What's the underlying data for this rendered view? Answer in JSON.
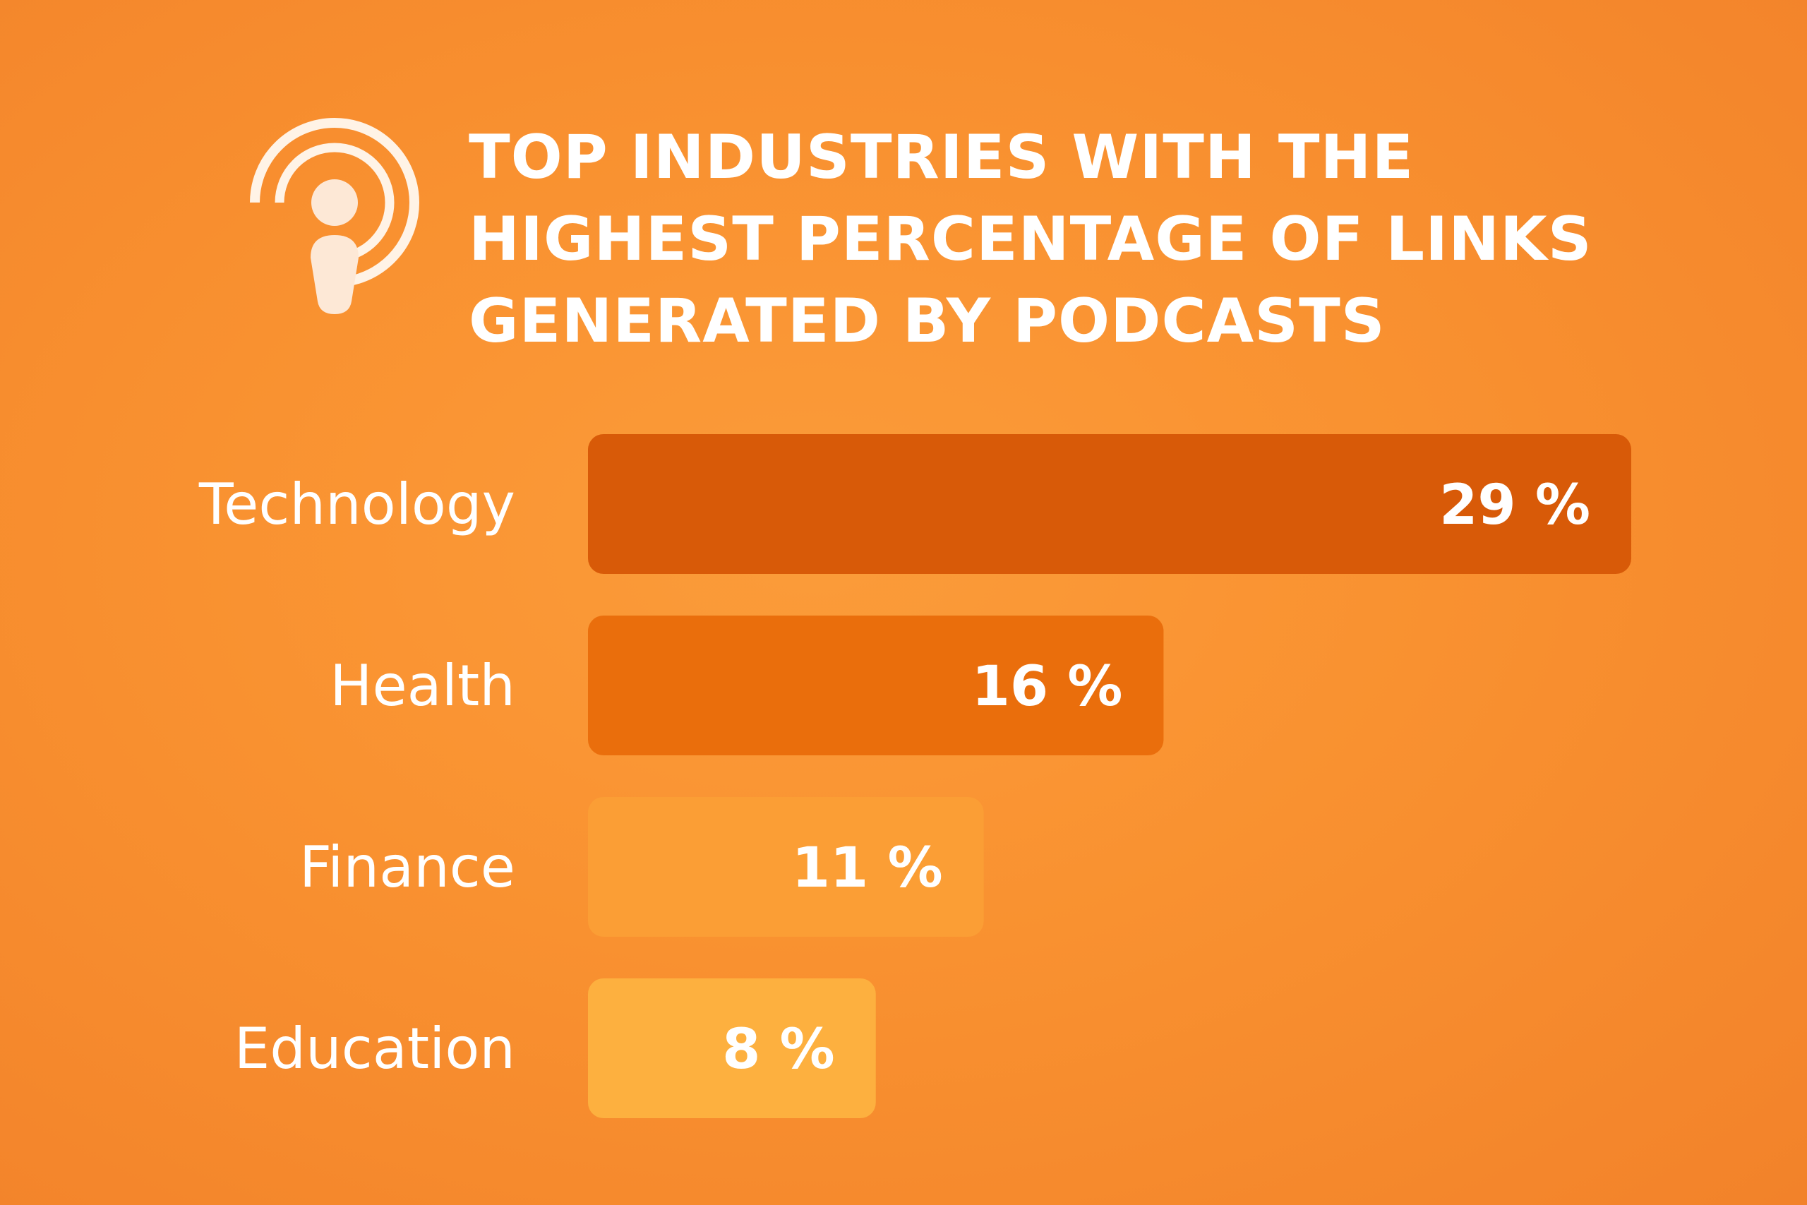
{
  "header": {
    "icon": "podcast-icon",
    "title": "TOP INDUSTRIES WITH THE\nHIGHEST PERCENTAGE OF LINKS\nGENERATED BY PODCASTS"
  },
  "chart_data": {
    "type": "bar",
    "orientation": "horizontal",
    "title": "TOP INDUSTRIES WITH THE HIGHEST PERCENTAGE OF LINKS GENERATED BY PODCASTS",
    "xlabel": "",
    "ylabel": "",
    "categories": [
      "Technology",
      "Health",
      "Finance",
      "Education"
    ],
    "values": [
      29,
      16,
      11,
      8
    ],
    "value_labels": [
      "29 %",
      "16 %",
      "11 %",
      "8 %"
    ],
    "unit": "%",
    "xlim": [
      0,
      29
    ],
    "grid": false,
    "legend": "none",
    "bar_colors": [
      "#d85a08",
      "#ea6e0c",
      "#fb9e35",
      "#fdb03f"
    ]
  }
}
